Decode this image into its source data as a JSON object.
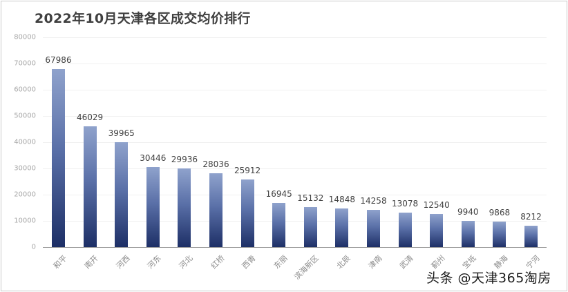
{
  "chart_data": {
    "type": "bar",
    "title": "2022年10月天津各区成交均价排行",
    "xlabel": "",
    "ylabel": "",
    "ylim": [
      0,
      80000
    ],
    "yticks": [
      0,
      10000,
      20000,
      30000,
      40000,
      50000,
      60000,
      70000,
      80000
    ],
    "grid": true,
    "legend": null,
    "categories": [
      "和平",
      "南开",
      "河西",
      "河东",
      "河北",
      "红桥",
      "西青",
      "东丽",
      "滨海新区",
      "北辰",
      "津南",
      "武清",
      "蓟州",
      "宝坻",
      "静海",
      "宁河"
    ],
    "values": [
      67986,
      46029,
      39965,
      30446,
      29936,
      28036,
      25912,
      16945,
      15132,
      14848,
      14258,
      13078,
      12540,
      9940,
      9868,
      8212
    ],
    "colors": {
      "bar_top": "#8fa2cc",
      "bar_bottom": "#1d2f66",
      "label": "#404040",
      "tick": "#a6a6a6"
    }
  },
  "watermark": "头条 @天津365淘房"
}
